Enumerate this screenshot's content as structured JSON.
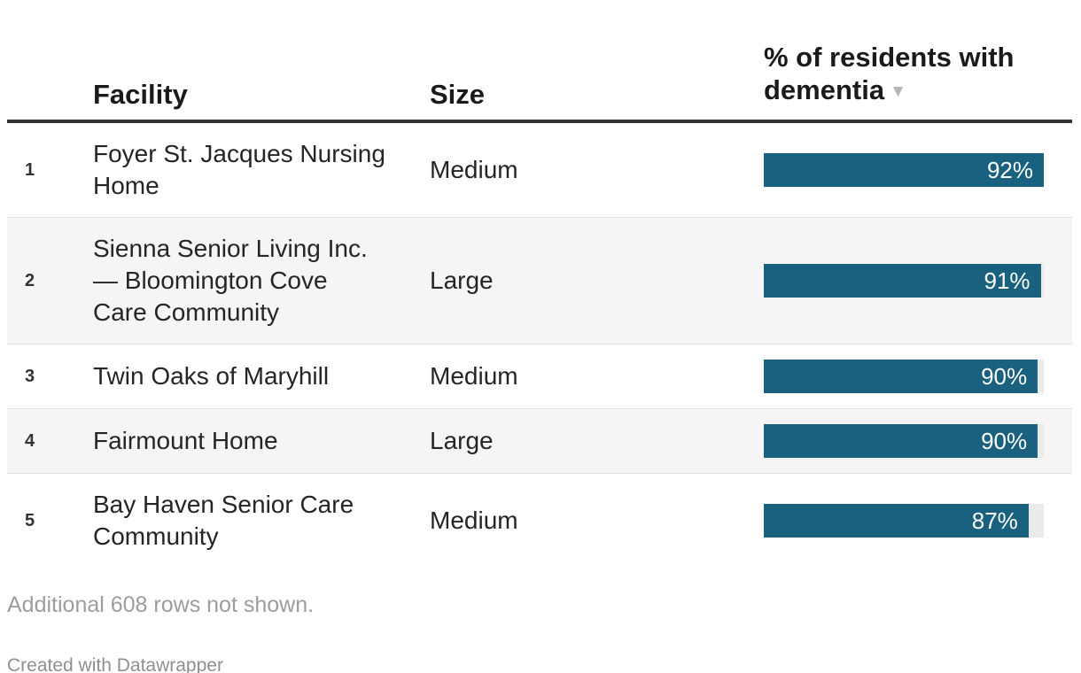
{
  "chart_data": {
    "type": "table",
    "title": "",
    "columns": [
      {
        "key": "rank",
        "label": ""
      },
      {
        "key": "facility",
        "label": "Facility"
      },
      {
        "key": "size",
        "label": "Size"
      },
      {
        "key": "pct_dementia",
        "label": "% of residents with dementia"
      }
    ],
    "sort": {
      "column": "pct_dementia",
      "direction": "descending"
    },
    "sort_icon": "▼",
    "rows": [
      {
        "rank": "1",
        "facility": "Foyer St. Jacques Nursing Home",
        "size": "Medium",
        "value": 92,
        "value_label": "92%"
      },
      {
        "rank": "2",
        "facility": "Sienna Senior Living Inc. — Bloomington Cove Care Community",
        "size": "Large",
        "value": 91,
        "value_label": "91%"
      },
      {
        "rank": "3",
        "facility": "Twin Oaks of Maryhill",
        "size": "Medium",
        "value": 90,
        "value_label": "90%"
      },
      {
        "rank": "4",
        "facility": "Fairmount Home",
        "size": "Large",
        "value": 90,
        "value_label": "90%"
      },
      {
        "rank": "5",
        "facility": "Bay Haven Senior Care Community",
        "size": "Medium",
        "value": 87,
        "value_label": "87%"
      }
    ],
    "bar_scale_min": 0,
    "bar_scale_max": 92,
    "bar_color": "#1a617f",
    "bar_track_color": "#ebebeb",
    "footer_note": "Additional 608 rows not shown.",
    "attribution": "Created with Datawrapper"
  }
}
